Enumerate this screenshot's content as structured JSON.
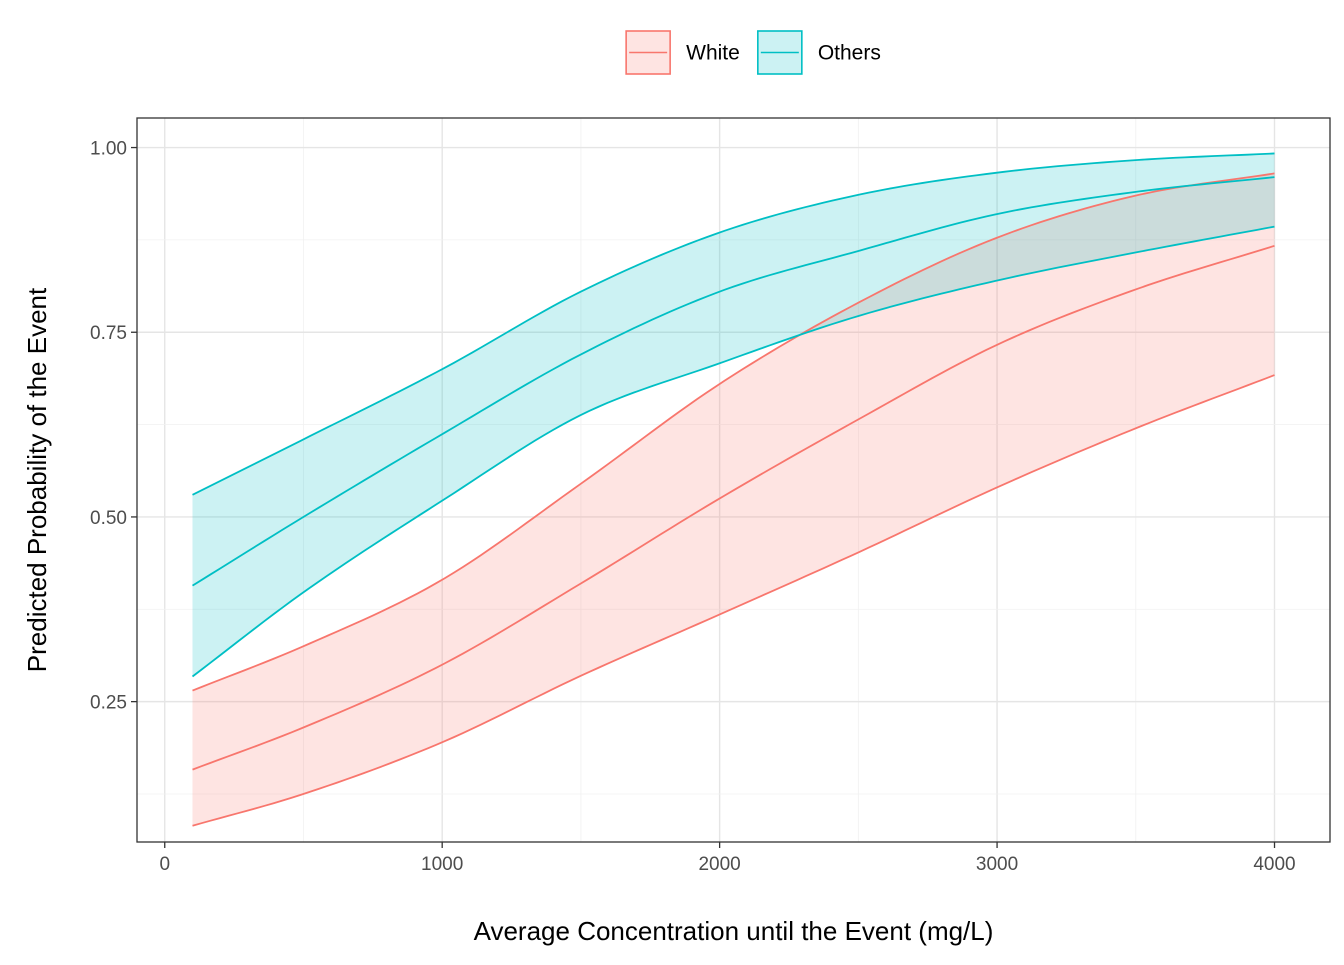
{
  "chart_data": {
    "type": "line",
    "title": "",
    "xlabel": "Average Concentration until the Event (mg/L)",
    "ylabel": "Predicted Probability of the Event",
    "xlim": [
      -100,
      4200
    ],
    "ylim": [
      0.06,
      1.04
    ],
    "x_ticks": [
      0,
      1000,
      2000,
      3000,
      4000
    ],
    "x_tick_labels": [
      "0",
      "1000",
      "2000",
      "3000",
      "4000"
    ],
    "y_ticks": [
      0.25,
      0.5,
      0.75,
      1.0
    ],
    "y_tick_labels": [
      "0.25",
      "0.50",
      "0.75",
      "1.00"
    ],
    "grid": true,
    "legend_position": "top",
    "x": [
      100,
      500,
      1000,
      1500,
      2000,
      2500,
      3000,
      3500,
      4000
    ],
    "series": [
      {
        "name": "White",
        "color": "#F8766D",
        "fill": "#fde0de",
        "fit": [
          0.158,
          0.215,
          0.3,
          0.41,
          0.525,
          0.632,
          0.733,
          0.808,
          0.867
        ],
        "lower": [
          0.082,
          0.125,
          0.195,
          0.285,
          0.368,
          0.452,
          0.54,
          0.62,
          0.692
        ],
        "upper": [
          0.265,
          0.325,
          0.415,
          0.545,
          0.68,
          0.79,
          0.878,
          0.935,
          0.965
        ]
      },
      {
        "name": "Others",
        "color": "#00BFC4",
        "fill": "#c6eff0",
        "fit": [
          0.407,
          0.5,
          0.612,
          0.72,
          0.805,
          0.86,
          0.91,
          0.94,
          0.96
        ],
        "lower": [
          0.284,
          0.398,
          0.522,
          0.638,
          0.708,
          0.772,
          0.82,
          0.858,
          0.893
        ],
        "upper": [
          0.53,
          0.605,
          0.7,
          0.805,
          0.885,
          0.936,
          0.966,
          0.983,
          0.992
        ]
      }
    ]
  }
}
